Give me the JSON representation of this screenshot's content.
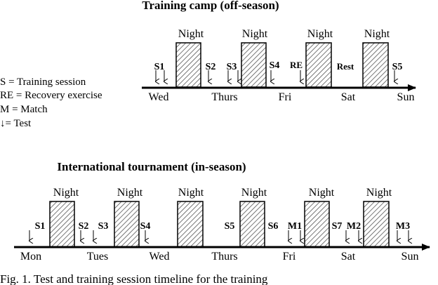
{
  "panel1": {
    "title": "Training camp (off-season)",
    "days": [
      "Wed",
      "Thurs",
      "Fri",
      "Sat",
      "Sun"
    ],
    "night_label": "Night",
    "events": [
      "S1",
      "S2",
      "S3",
      "S4",
      "RE",
      "Rest",
      "S5"
    ]
  },
  "legend": {
    "s": "S = Training session",
    "re": "RE = Recovery exercise",
    "m": "M = Match",
    "test": "↓= Test"
  },
  "panel2": {
    "title": "International tournament (in-season)",
    "days": [
      "Mon",
      "Tues",
      "Wed",
      "Thurs",
      "Fri",
      "Sat",
      "Sun"
    ],
    "night_label": "Night",
    "events": [
      "S1",
      "S2",
      "S3",
      "S4",
      "S5",
      "S6",
      "M1",
      "S7",
      "M2",
      "M3"
    ]
  },
  "caption": "Fig. 1. Test and training session timeline for the training"
}
